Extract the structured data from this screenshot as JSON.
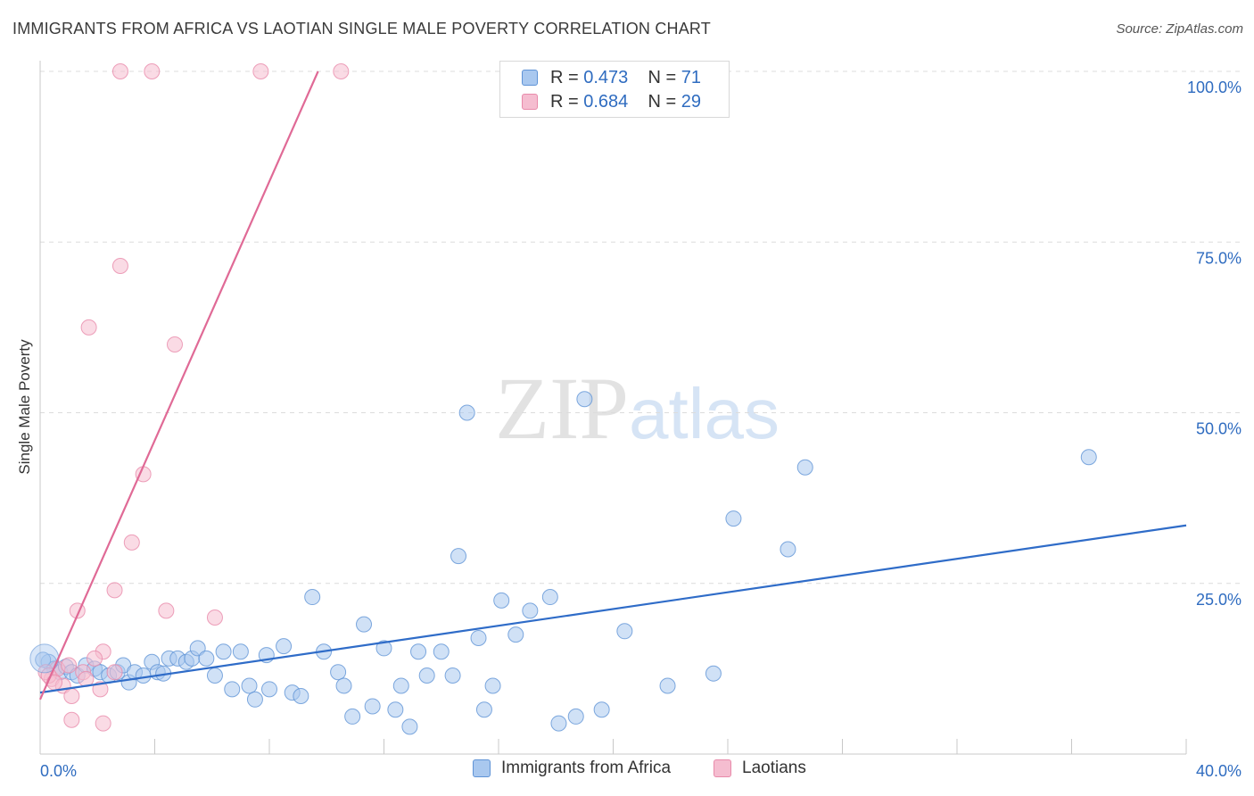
{
  "title": "IMMIGRANTS FROM AFRICA VS LAOTIAN SINGLE MALE POVERTY CORRELATION CHART",
  "source": "Source: ZipAtlas.com",
  "watermark": {
    "zip": "ZIP",
    "atlas": "atlas"
  },
  "legend": {
    "rows": [
      {
        "r_label": "R =",
        "r_value": "0.473",
        "n_label": "N =",
        "n_value": "71"
      },
      {
        "r_label": "R =",
        "r_value": "0.684",
        "n_label": "N =",
        "n_value": "29"
      }
    ]
  },
  "colors": {
    "blue_fill": "#a9c8ef",
    "blue_stroke": "#5f93d6",
    "blue_line": "#2f6cc8",
    "pink_fill": "#f5bdd0",
    "pink_stroke": "#e88aaa",
    "pink_line": "#e06a96",
    "axis_text": "#2f6cc0"
  },
  "chart_data": {
    "type": "scatter",
    "title": "IMMIGRANTS FROM AFRICA VS LAOTIAN SINGLE MALE POVERTY CORRELATION CHART",
    "xlabel": "",
    "ylabel": "Single Male Poverty",
    "xlim": [
      0,
      40
    ],
    "ylim": [
      0,
      100
    ],
    "x_tick_labels": [
      "0.0%",
      "40.0%"
    ],
    "y_tick_labels": [
      "25.0%",
      "50.0%",
      "75.0%",
      "100.0%"
    ],
    "y_ticks": [
      25,
      50,
      75,
      100
    ],
    "grid": true,
    "series": [
      {
        "name": "Immigrants from Africa",
        "R": 0.473,
        "N": 71,
        "trend": {
          "x0": 0,
          "y0": 9.0,
          "x1": 40,
          "y1": 33.5
        },
        "points": [
          [
            0.3,
            13.5
          ],
          [
            0.5,
            12.5
          ],
          [
            0.7,
            12.0
          ],
          [
            0.9,
            12.8
          ],
          [
            1.1,
            12.0
          ],
          [
            1.3,
            11.5
          ],
          [
            1.6,
            13.0
          ],
          [
            1.9,
            12.5
          ],
          [
            2.1,
            12.0
          ],
          [
            2.4,
            11.5
          ],
          [
            2.7,
            12.0
          ],
          [
            2.9,
            13.0
          ],
          [
            3.1,
            10.5
          ],
          [
            3.3,
            12.0
          ],
          [
            3.6,
            11.5
          ],
          [
            3.9,
            13.5
          ],
          [
            4.1,
            12.0
          ],
          [
            4.3,
            11.8
          ],
          [
            4.5,
            14.0
          ],
          [
            4.8,
            14.0
          ],
          [
            5.1,
            13.5
          ],
          [
            5.3,
            14.0
          ],
          [
            5.5,
            15.5
          ],
          [
            5.8,
            14.0
          ],
          [
            6.1,
            11.5
          ],
          [
            6.4,
            15.0
          ],
          [
            6.7,
            9.5
          ],
          [
            7.0,
            15.0
          ],
          [
            7.3,
            10.0
          ],
          [
            7.5,
            8.0
          ],
          [
            7.9,
            14.5
          ],
          [
            8.0,
            9.5
          ],
          [
            8.5,
            15.8
          ],
          [
            8.8,
            9.0
          ],
          [
            9.1,
            8.5
          ],
          [
            9.5,
            23.0
          ],
          [
            9.9,
            15.0
          ],
          [
            10.4,
            12.0
          ],
          [
            10.6,
            10.0
          ],
          [
            10.9,
            5.5
          ],
          [
            11.3,
            19.0
          ],
          [
            11.6,
            7.0
          ],
          [
            12.0,
            15.5
          ],
          [
            12.4,
            6.5
          ],
          [
            12.6,
            10.0
          ],
          [
            12.9,
            4.0
          ],
          [
            13.2,
            15.0
          ],
          [
            13.5,
            11.5
          ],
          [
            14.0,
            15.0
          ],
          [
            14.4,
            11.5
          ],
          [
            14.6,
            29.0
          ],
          [
            14.9,
            50.0
          ],
          [
            15.3,
            17.0
          ],
          [
            15.5,
            6.5
          ],
          [
            15.8,
            10.0
          ],
          [
            16.1,
            22.5
          ],
          [
            16.6,
            17.5
          ],
          [
            17.1,
            21.0
          ],
          [
            17.8,
            23.0
          ],
          [
            18.1,
            4.5
          ],
          [
            18.7,
            5.5
          ],
          [
            19.0,
            52.0
          ],
          [
            19.6,
            6.5
          ],
          [
            20.4,
            18.0
          ],
          [
            21.9,
            10.0
          ],
          [
            23.5,
            11.8
          ],
          [
            24.2,
            34.5
          ],
          [
            26.1,
            30.0
          ],
          [
            26.7,
            42.0
          ],
          [
            36.6,
            43.5
          ],
          [
            0.1,
            13.8
          ]
        ]
      },
      {
        "name": "Laotians",
        "R": 0.684,
        "N": 29,
        "trend": {
          "x0": 0,
          "y0": 8.0,
          "x1": 9.7,
          "y1": 100.0
        },
        "points": [
          [
            2.8,
            100.0
          ],
          [
            3.9,
            100.0
          ],
          [
            7.7,
            100.0
          ],
          [
            10.5,
            100.0
          ],
          [
            2.8,
            71.5
          ],
          [
            1.7,
            62.5
          ],
          [
            4.7,
            60.0
          ],
          [
            3.6,
            41.0
          ],
          [
            3.2,
            31.0
          ],
          [
            2.6,
            24.0
          ],
          [
            1.3,
            21.0
          ],
          [
            4.4,
            21.0
          ],
          [
            6.1,
            20.0
          ],
          [
            2.2,
            15.0
          ],
          [
            1.9,
            14.0
          ],
          [
            2.6,
            12.0
          ],
          [
            0.4,
            11.0
          ],
          [
            0.6,
            12.5
          ],
          [
            0.8,
            10.0
          ],
          [
            1.0,
            13.0
          ],
          [
            1.5,
            12.0
          ],
          [
            2.1,
            9.5
          ],
          [
            1.1,
            8.5
          ],
          [
            1.1,
            5.0
          ],
          [
            2.2,
            4.5
          ],
          [
            0.2,
            12.0
          ],
          [
            0.3,
            11.5
          ],
          [
            0.5,
            10.5
          ],
          [
            1.6,
            11.0
          ]
        ]
      }
    ]
  },
  "bottom_legend": [
    "Immigrants from Africa",
    "Laotians"
  ]
}
